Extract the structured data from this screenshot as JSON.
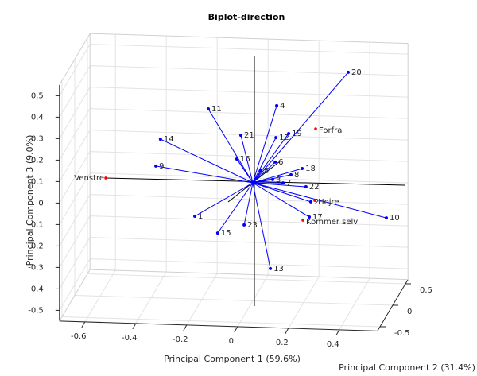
{
  "chart_data": {
    "type": "biplot3d",
    "title": "Biplot-direction",
    "xlabel": "Principal Component 1 (59.6%)",
    "ylabel": "Principal Component 2 (31.4%)",
    "zlabel": "Principal Component 3 (9.0%)",
    "xlim": [
      -0.7,
      0.55
    ],
    "ylim": [
      -0.6,
      0.6
    ],
    "zlim": [
      -0.55,
      0.55
    ],
    "xticks": [
      -0.6,
      -0.4,
      -0.2,
      0,
      0.2,
      0.4
    ],
    "yticks": [
      -0.5,
      0,
      0.5
    ],
    "zticks": [
      -0.5,
      -0.4,
      -0.3,
      -0.2,
      -0.1,
      0,
      0.1,
      0.2,
      0.3,
      0.4,
      0.5
    ],
    "grid": true,
    "vectors": {
      "color": "#0000ff",
      "labels": [
        "1",
        "2",
        "3",
        "4",
        "5",
        "6",
        "7",
        "8",
        "9",
        "10",
        "11",
        "12",
        "13",
        "14",
        "15",
        "16",
        "17",
        "18",
        "19",
        "20",
        "21",
        "22",
        "23"
      ],
      "x": [
        -0.228,
        0.228,
        0.078,
        0.094,
        0.031,
        0.088,
        0.119,
        0.15,
        -0.381,
        0.525,
        -0.175,
        0.091,
        0.069,
        -0.363,
        -0.138,
        -0.063,
        0.222,
        0.194,
        0.141,
        0.375,
        -0.047,
        0.209,
        -0.034
      ],
      "y": [
        0,
        0,
        0,
        0,
        0,
        0,
        0,
        0,
        0,
        0,
        0,
        0,
        0,
        0,
        0,
        0,
        0,
        0,
        0,
        0,
        0,
        0,
        0
      ],
      "z": [
        -0.164,
        -0.08,
        0.018,
        0.363,
        0.057,
        0.1,
        0.004,
        0.043,
        0.064,
        -0.144,
        0.338,
        0.214,
        -0.397,
        0.19,
        -0.239,
        0.109,
        -0.151,
        0.074,
        0.235,
        0.529,
        0.22,
        -0.011,
        -0.197
      ]
    },
    "observations": {
      "color": "#ff0000",
      "labels": [
        "Forfra",
        "Venstre",
        "Hojre",
        "Kommer selv"
      ],
      "x": [
        0.247,
        -0.578,
        0.244,
        0.197
      ],
      "y": [
        0,
        0,
        0,
        0
      ],
      "z": [
        0.261,
        0.001,
        -0.073,
        -0.167
      ]
    }
  }
}
